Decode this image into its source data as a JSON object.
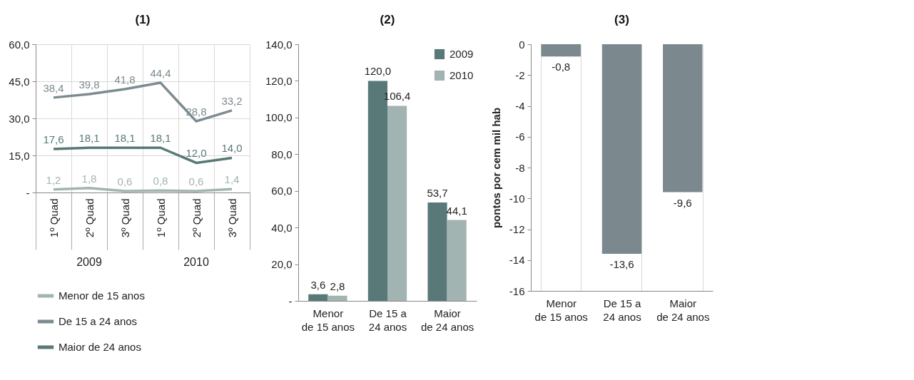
{
  "chart_data": [
    {
      "type": "line",
      "title": "(1)",
      "categories": [
        "1º Quad",
        "2º Quad",
        "3º Quad",
        "1º Quad",
        "2º Quad",
        "3º Quad"
      ],
      "annotations": [
        "2009",
        "2010"
      ],
      "series": [
        {
          "name": "Menor de 15 anos",
          "color": "#a2b4b1",
          "values": [
            1.2,
            1.8,
            0.6,
            0.8,
            0.6,
            1.4
          ],
          "value_labels": [
            "1,2",
            "1,8",
            "0,6",
            "0,8",
            "0,6",
            "1,4"
          ]
        },
        {
          "name": "De 15 a 24 anos",
          "color": "#7c8b91",
          "values": [
            38.4,
            39.8,
            41.8,
            44.4,
            28.8,
            33.2
          ],
          "value_labels": [
            "38,4",
            "39,8",
            "41,8",
            "44,4",
            "28,8",
            "33,2"
          ]
        },
        {
          "name": "Maior de 24 anos",
          "color": "#587977",
          "values": [
            17.6,
            18.1,
            18.1,
            18.1,
            12.0,
            14.0
          ],
          "value_labels": [
            "17,6",
            "18,1",
            "18,1",
            "18,1",
            "12,0",
            "14,0"
          ]
        }
      ],
      "ylim": [
        0,
        60
      ],
      "yticks": [
        {
          "value": 0,
          "label": "-"
        },
        {
          "value": 15,
          "label": "15,0"
        },
        {
          "value": 30,
          "label": "30,0"
        },
        {
          "value": 45,
          "label": "45,0"
        },
        {
          "value": 60,
          "label": "60,0"
        }
      ],
      "grid": true,
      "legend": "bottom"
    },
    {
      "type": "bar",
      "title": "(2)",
      "categories": [
        "Menor\nde 15 anos",
        "De 15 a\n24 anos",
        "Maior\nde 24 anos"
      ],
      "series": [
        {
          "name": "2009",
          "color": "#587977",
          "values": [
            3.6,
            120.0,
            53.7
          ],
          "value_labels": [
            "3,6",
            "120,0",
            "53,7"
          ]
        },
        {
          "name": "2010",
          "color": "#a2b4b1",
          "values": [
            2.8,
            106.4,
            44.1
          ],
          "value_labels": [
            "2,8",
            "106,4",
            "44,1"
          ]
        }
      ],
      "ylim": [
        0,
        140
      ],
      "yticks": [
        {
          "value": 0,
          "label": "-"
        },
        {
          "value": 20,
          "label": "20,0"
        },
        {
          "value": 40,
          "label": "40,0"
        },
        {
          "value": 60,
          "label": "60,0"
        },
        {
          "value": 80,
          "label": "80,0"
        },
        {
          "value": 100,
          "label": "100,0"
        },
        {
          "value": 120,
          "label": "120,0"
        },
        {
          "value": 140,
          "label": "140,0"
        }
      ],
      "legend": "top right"
    },
    {
      "type": "bar",
      "title": "(3)",
      "ylabel": "pontos por cem mil hab",
      "categories": [
        "Menor\nde 15 anos",
        "De 15 a\n24 anos",
        "Maior\nde 24 anos"
      ],
      "values": [
        -0.8,
        -13.6,
        -9.6
      ],
      "color": "#7b898f",
      "value_labels": [
        "-0,8",
        "-13,6",
        "-9,6"
      ],
      "ylim": [
        -16,
        0
      ],
      "yticks": [
        0,
        -2,
        -4,
        -6,
        -8,
        -10,
        -12,
        -14,
        -16
      ],
      "grid": "x"
    }
  ]
}
